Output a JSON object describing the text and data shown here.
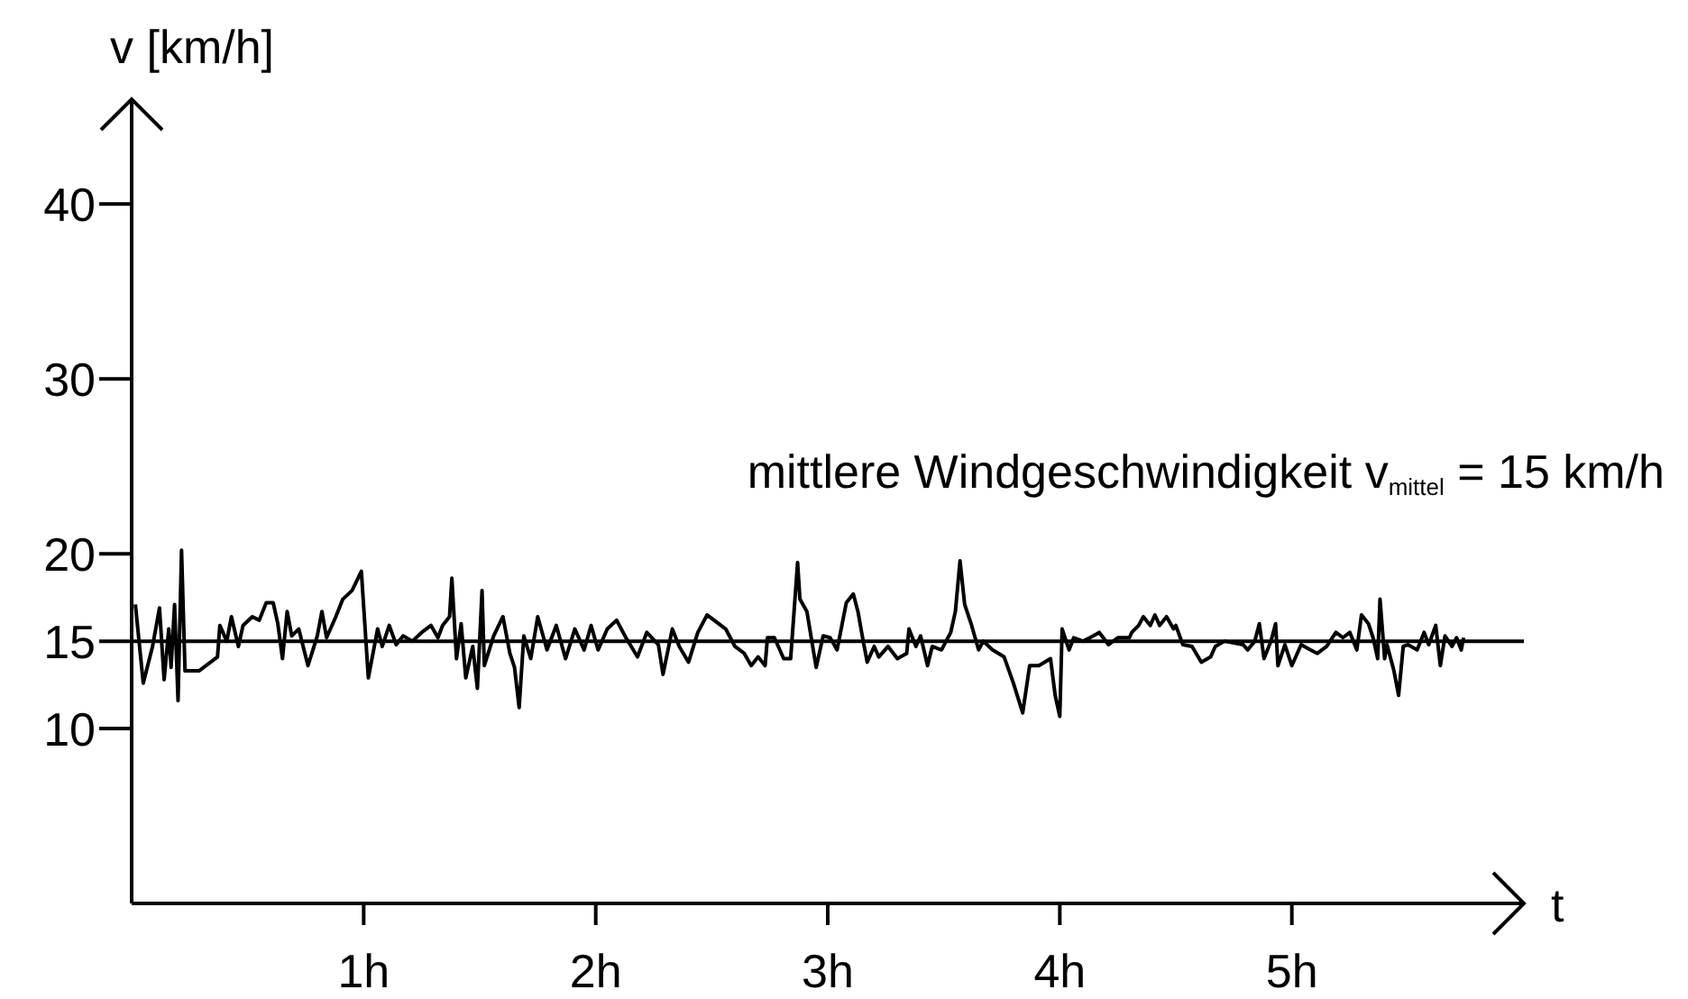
{
  "chart_data": {
    "type": "line",
    "xlabel": "t",
    "ylabel": "v  [km/h]",
    "xlim": [
      0,
      6
    ],
    "ylim": [
      0,
      46
    ],
    "xticks": [
      {
        "value": 1,
        "label": "1h"
      },
      {
        "value": 2,
        "label": "2h"
      },
      {
        "value": 3,
        "label": "3h"
      },
      {
        "value": 4,
        "label": "4h"
      },
      {
        "value": 5,
        "label": "5h"
      }
    ],
    "yticks": [
      10,
      15,
      20,
      30,
      40
    ],
    "grid": false,
    "legend": false,
    "marker": "none",
    "line_style": "solid",
    "ref_lines": [
      {
        "axis": "y",
        "value": 15,
        "label": "mittlere Windgeschwindigkeit v$_{mittel}$ = 15 km/h",
        "color": "#000000",
        "line_style": "solid"
      }
    ],
    "series": [
      {
        "color": "#000000",
        "x": [
          0.016,
          0.05,
          0.09,
          0.12,
          0.14,
          0.16,
          0.17,
          0.185,
          0.2,
          0.215,
          0.23,
          0.29,
          0.37,
          0.38,
          0.41,
          0.43,
          0.46,
          0.48,
          0.52,
          0.55,
          0.58,
          0.61,
          0.63,
          0.65,
          0.67,
          0.69,
          0.72,
          0.76,
          0.8,
          0.82,
          0.84,
          0.88,
          0.91,
          0.95,
          0.99,
          1.02,
          1.06,
          1.08,
          1.11,
          1.14,
          1.17,
          1.21,
          1.25,
          1.29,
          1.32,
          1.34,
          1.37,
          1.38,
          1.4,
          1.42,
          1.44,
          1.47,
          1.49,
          1.51,
          1.52,
          1.56,
          1.6,
          1.63,
          1.65,
          1.67,
          1.69,
          1.72,
          1.75,
          1.79,
          1.83,
          1.87,
          1.91,
          1.95,
          1.98,
          2.01,
          2.05,
          2.09,
          2.13,
          2.18,
          2.22,
          2.27,
          2.29,
          2.33,
          2.36,
          2.4,
          2.44,
          2.48,
          2.51,
          2.56,
          2.6,
          2.64,
          2.67,
          2.7,
          2.73,
          2.74,
          2.77,
          2.81,
          2.84,
          2.87,
          2.88,
          2.91,
          2.95,
          2.98,
          3.01,
          3.04,
          3.08,
          3.11,
          3.13,
          3.15,
          3.17,
          3.2,
          3.22,
          3.26,
          3.3,
          3.34,
          3.35,
          3.38,
          3.4,
          3.43,
          3.45,
          3.49,
          3.53,
          3.55,
          3.57,
          3.59,
          3.62,
          3.65,
          3.67,
          3.71,
          3.76,
          3.8,
          3.84,
          3.87,
          3.91,
          3.96,
          3.98,
          4.0,
          4.01,
          4.04,
          4.06,
          4.1,
          4.13,
          4.17,
          4.21,
          4.25,
          4.3,
          4.31,
          4.34,
          4.36,
          4.39,
          4.41,
          4.43,
          4.46,
          4.49,
          4.5,
          4.53,
          4.57,
          4.61,
          4.65,
          4.67,
          4.71,
          4.79,
          4.81,
          4.84,
          4.86,
          4.88,
          4.91,
          4.93,
          4.94,
          4.97,
          5.0,
          5.04,
          5.08,
          5.11,
          5.15,
          5.19,
          5.22,
          5.25,
          5.28,
          5.3,
          5.33,
          5.35,
          5.37,
          5.38,
          5.4,
          5.41,
          5.44,
          5.46,
          5.47,
          5.48,
          5.5,
          5.54,
          5.57,
          5.59,
          5.62,
          5.64,
          5.66,
          5.69,
          5.71,
          5.73,
          5.74
        ],
        "values": [
          17.1,
          12.6,
          14.7,
          16.9,
          12.8,
          15.7,
          13.5,
          17.1,
          11.6,
          20.2,
          13.3,
          13.3,
          14.1,
          15.9,
          15.0,
          16.4,
          14.7,
          15.9,
          16.4,
          16.2,
          17.2,
          17.2,
          16.0,
          14.0,
          16.7,
          15.3,
          15.7,
          13.6,
          15.3,
          16.7,
          15.2,
          16.4,
          17.4,
          17.9,
          19.0,
          12.9,
          15.7,
          14.7,
          15.9,
          14.8,
          15.3,
          15.0,
          15.5,
          15.9,
          15.2,
          15.9,
          16.4,
          18.6,
          14.0,
          16.0,
          12.9,
          14.7,
          12.3,
          17.9,
          13.6,
          15.3,
          16.4,
          14.3,
          13.5,
          11.2,
          15.3,
          14.0,
          16.4,
          14.5,
          15.9,
          14.0,
          15.7,
          14.5,
          15.9,
          14.5,
          15.7,
          16.2,
          15.2,
          14.1,
          15.5,
          14.8,
          13.1,
          15.7,
          14.7,
          13.8,
          15.5,
          16.5,
          16.2,
          15.7,
          14.7,
          14.3,
          13.6,
          14.1,
          13.6,
          15.2,
          15.2,
          14.0,
          14.0,
          19.5,
          17.4,
          16.7,
          13.5,
          15.3,
          15.2,
          14.5,
          17.2,
          17.7,
          16.7,
          15.2,
          13.8,
          14.7,
          14.1,
          14.7,
          14.0,
          14.3,
          15.7,
          14.7,
          15.3,
          13.6,
          14.7,
          14.5,
          15.5,
          16.7,
          19.6,
          17.1,
          15.9,
          14.5,
          15.0,
          14.5,
          14.1,
          12.6,
          10.9,
          13.6,
          13.6,
          14.0,
          11.9,
          10.7,
          15.7,
          14.5,
          15.2,
          15.0,
          15.2,
          15.5,
          14.8,
          15.2,
          15.2,
          15.5,
          15.9,
          16.4,
          15.9,
          16.5,
          15.9,
          16.4,
          15.7,
          15.9,
          14.8,
          14.7,
          13.8,
          14.1,
          14.7,
          15.0,
          14.8,
          14.5,
          15.0,
          16.0,
          14.0,
          15.0,
          16.0,
          13.6,
          14.8,
          13.6,
          14.8,
          14.5,
          14.3,
          14.7,
          15.5,
          15.2,
          15.5,
          14.5,
          16.5,
          16.0,
          15.2,
          14.0,
          17.4,
          14.0,
          14.8,
          13.3,
          11.9,
          13.3,
          14.7,
          14.8,
          14.5,
          15.5,
          14.8,
          15.9,
          13.6,
          15.3,
          14.7,
          15.2,
          14.5,
          15.2
        ]
      }
    ]
  }
}
